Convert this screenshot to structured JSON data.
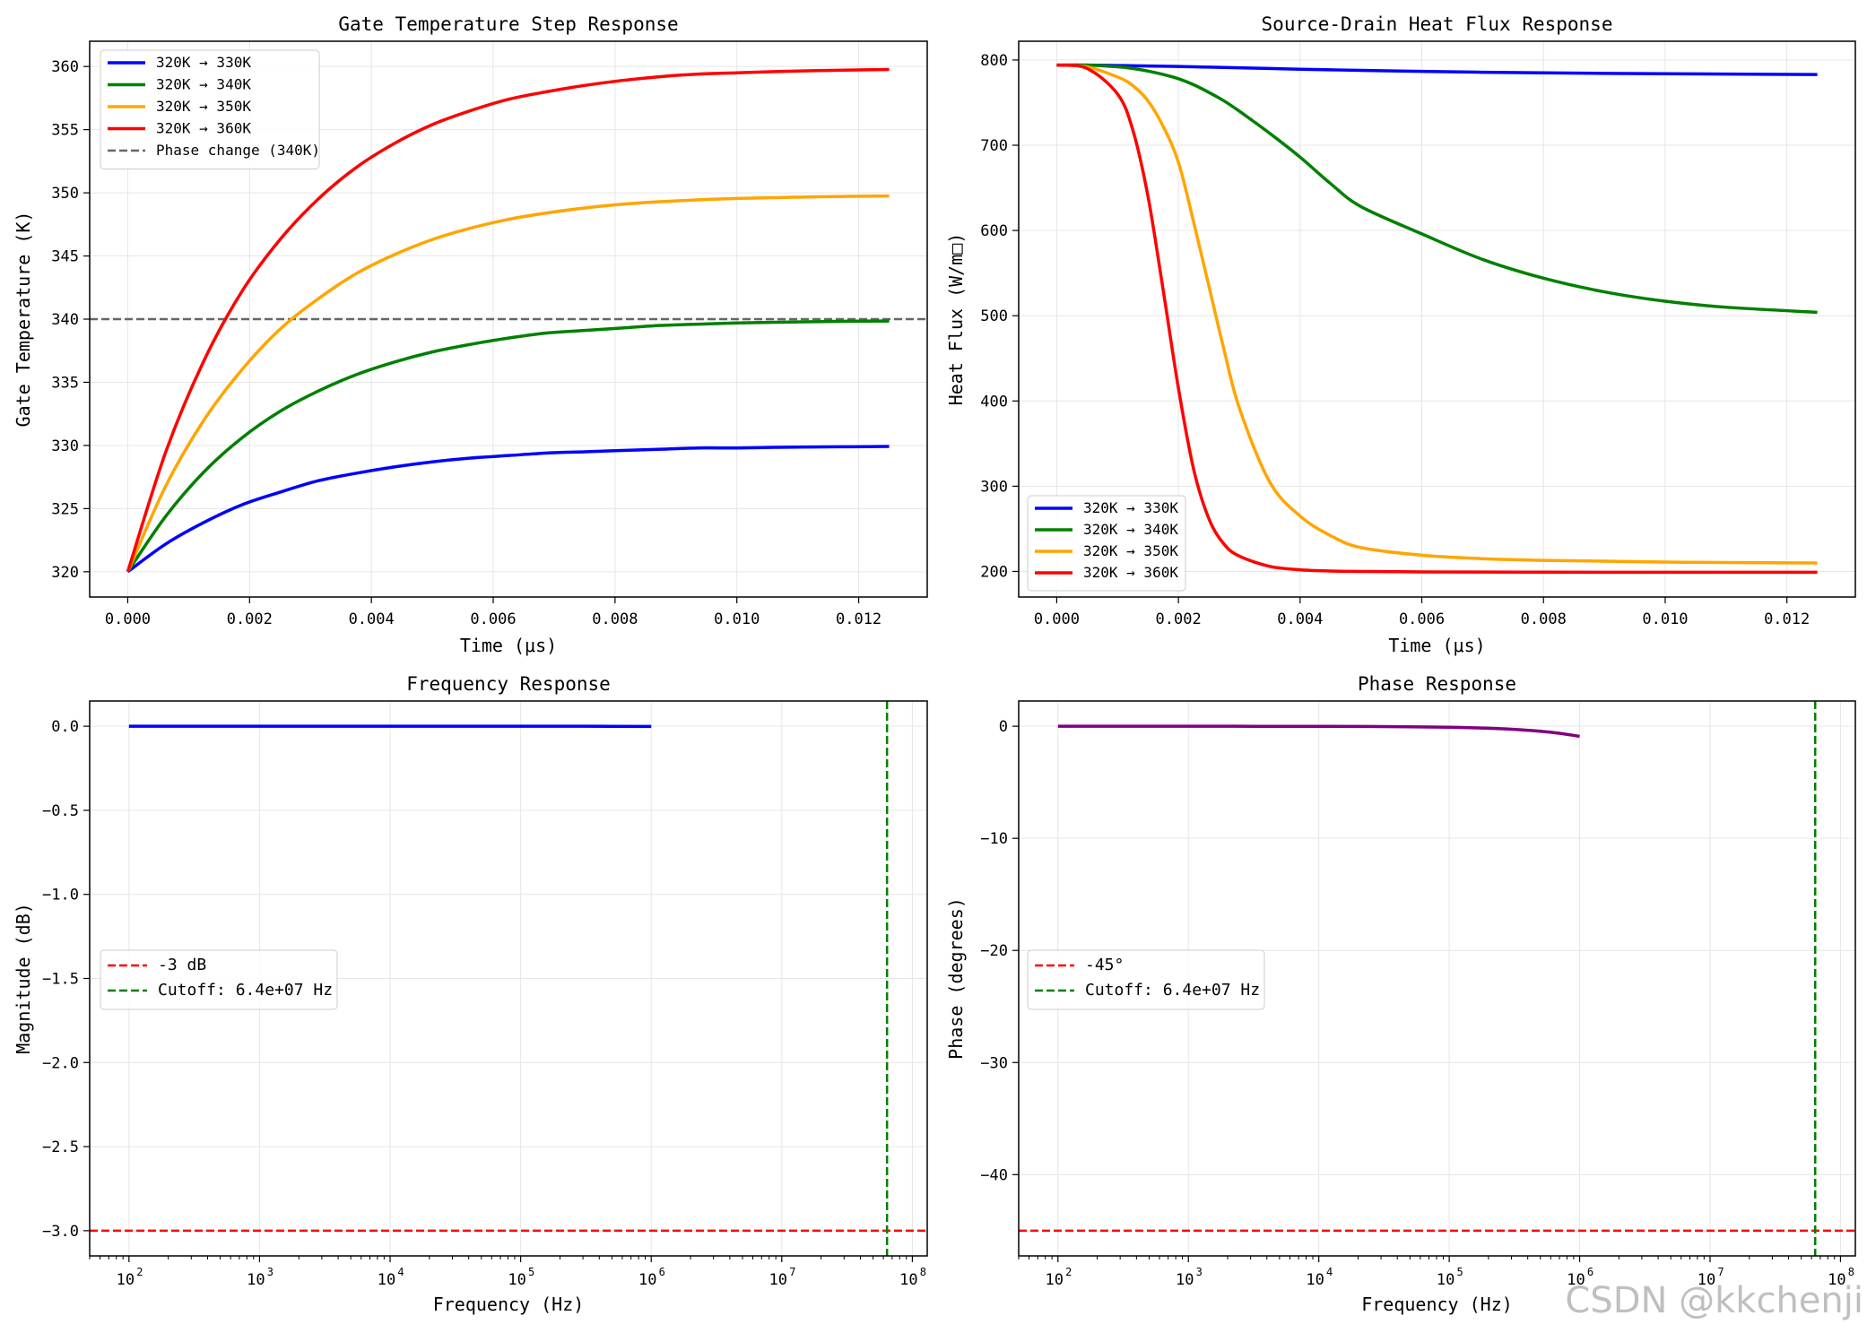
{
  "chart_data": [
    {
      "type": "line",
      "title": "Gate Temperature Step Response",
      "xlabel": "Time (μs)",
      "ylabel": "Gate Temperature (K)",
      "xscale": "linear",
      "xlim": [
        -0.000625,
        0.013125
      ],
      "ylim": [
        318,
        362
      ],
      "xticks": [
        0,
        0.002,
        0.004,
        0.006,
        0.008,
        0.01,
        0.012
      ],
      "xtick_labels": [
        "0.000",
        "0.002",
        "0.004",
        "0.006",
        "0.008",
        "0.010",
        "0.012"
      ],
      "yticks": [
        320,
        325,
        330,
        335,
        340,
        345,
        350,
        355,
        360
      ],
      "ytick_labels": [
        "320",
        "325",
        "330",
        "335",
        "340",
        "345",
        "350",
        "355",
        "360"
      ],
      "grid": true,
      "legend_position": "upper-left",
      "x": [
        0,
        0.000625,
        0.00125,
        0.001875,
        0.0025,
        0.003125,
        0.00375,
        0.004375,
        0.005,
        0.005625,
        0.00625,
        0.006875,
        0.0075,
        0.008125,
        0.00875,
        0.009375,
        0.01,
        0.010625,
        0.01125,
        0.011875,
        0.0125
      ],
      "series": [
        {
          "name": "320K → 330K",
          "color": "#0000ff",
          "values": [
            320,
            322.2,
            323.9,
            325.3,
            326.3,
            327.2,
            327.8,
            328.3,
            328.7,
            329.0,
            329.2,
            329.4,
            329.5,
            329.6,
            329.7,
            329.8,
            329.8,
            329.85,
            329.88,
            329.9,
            329.92
          ]
        },
        {
          "name": "320K → 340K",
          "color": "#008000",
          "values": [
            320,
            324.4,
            327.9,
            330.6,
            332.7,
            334.3,
            335.6,
            336.6,
            337.4,
            338.0,
            338.5,
            338.9,
            339.1,
            339.3,
            339.5,
            339.6,
            339.7,
            339.75,
            339.8,
            339.83,
            339.85
          ]
        },
        {
          "name": "320K → 350K",
          "color": "#ffa500",
          "values": [
            320,
            326.8,
            332.0,
            336.0,
            339.2,
            341.6,
            343.6,
            345.1,
            346.3,
            347.2,
            347.9,
            348.4,
            348.8,
            349.1,
            349.3,
            349.45,
            349.55,
            349.62,
            349.68,
            349.72,
            349.75
          ]
        },
        {
          "name": "320K → 360K",
          "color": "#ff0000",
          "values": [
            320,
            329.5,
            336.7,
            342.2,
            346.3,
            349.5,
            352.0,
            353.9,
            355.4,
            356.5,
            357.4,
            358.0,
            358.5,
            358.9,
            359.2,
            359.4,
            359.5,
            359.6,
            359.67,
            359.72,
            359.76
          ]
        }
      ],
      "reference_lines": [
        {
          "name": "Phase change (340K)",
          "orientation": "horizontal",
          "value": 340,
          "color": "#666666",
          "style": "dashed"
        }
      ]
    },
    {
      "type": "line",
      "title": "Source-Drain Heat Flux Response",
      "xlabel": "Time (μs)",
      "ylabel": "Heat Flux (W/m□)",
      "xscale": "linear",
      "xlim": [
        -0.000625,
        0.013125
      ],
      "ylim": [
        170,
        822
      ],
      "xticks": [
        0,
        0.002,
        0.004,
        0.006,
        0.008,
        0.01,
        0.012
      ],
      "xtick_labels": [
        "0.000",
        "0.002",
        "0.004",
        "0.006",
        "0.008",
        "0.010",
        "0.012"
      ],
      "yticks": [
        200,
        300,
        400,
        500,
        600,
        700,
        800
      ],
      "ytick_labels": [
        "200",
        "300",
        "400",
        "500",
        "600",
        "700",
        "800"
      ],
      "grid": true,
      "legend_position": "lower-left",
      "x": [
        0,
        0.0005,
        0.001,
        0.00125,
        0.0015,
        0.00175,
        0.002,
        0.00225,
        0.0025,
        0.00275,
        0.003,
        0.0035,
        0.004,
        0.0045,
        0.005,
        0.006,
        0.007,
        0.008,
        0.009,
        0.01,
        0.011,
        0.0125
      ],
      "series": [
        {
          "name": "320K → 330K",
          "color": "#0000ff",
          "values": [
            794,
            794,
            793.5,
            793.2,
            793,
            792.7,
            792.4,
            792,
            791.6,
            791.2,
            790.8,
            790,
            789.2,
            788.5,
            787.8,
            786.6,
            785.6,
            784.9,
            784.3,
            783.9,
            783.5,
            783
          ]
        },
        {
          "name": "320K → 340K",
          "color": "#008000",
          "values": [
            794,
            794,
            792,
            790,
            787,
            783,
            778,
            771,
            762,
            752,
            740,
            714,
            686,
            655,
            628,
            596,
            566,
            544,
            528,
            517,
            510,
            504
          ]
        },
        {
          "name": "320K → 350K",
          "color": "#ffa500",
          "values": [
            794,
            792,
            780,
            770,
            752,
            722,
            680,
            610,
            535,
            460,
            392,
            305,
            265,
            242,
            228,
            219,
            215,
            213,
            212,
            211,
            210.5,
            210
          ]
        },
        {
          "name": "320K → 360K",
          "color": "#ff0000",
          "values": [
            794,
            790,
            760,
            718,
            640,
            530,
            415,
            320,
            262,
            232,
            218,
            206,
            202,
            200.5,
            200,
            199.5,
            199.3,
            199.2,
            199.1,
            199,
            199,
            199
          ]
        }
      ]
    },
    {
      "type": "line",
      "title": "Frequency Response",
      "xlabel": "Frequency (Hz)",
      "ylabel": "Magnitude (dB)",
      "xscale": "log",
      "xlim": [
        50,
        130000000
      ],
      "ylim": [
        -3.15,
        0.15
      ],
      "xticks": [
        100,
        1000,
        10000,
        100000,
        1000000,
        10000000,
        100000000
      ],
      "xtick_bases": [
        "10",
        "10",
        "10",
        "10",
        "10",
        "10",
        "10"
      ],
      "xtick_exponents": [
        "2",
        "3",
        "4",
        "5",
        "6",
        "7",
        "8"
      ],
      "yticks": [
        0,
        -0.5,
        -1,
        -1.5,
        -2,
        -2.5,
        -3
      ],
      "ytick_labels": [
        "0.0",
        "−0.5",
        "−1.0",
        "−1.5",
        "−2.0",
        "−2.5",
        "−3.0"
      ],
      "grid": true,
      "legend_position": "center-left",
      "x": [
        100,
        1000,
        10000,
        100000,
        300000,
        1000000
      ],
      "series": [
        {
          "name": "",
          "color": "#0000ff",
          "values": [
            0,
            0,
            0,
            0,
            0,
            -0.001
          ]
        }
      ],
      "reference_lines": [
        {
          "name": "-3 dB",
          "orientation": "horizontal",
          "value": -3,
          "color": "#ff0000",
          "style": "dashed"
        },
        {
          "name": "Cutoff: 6.4e+07 Hz",
          "orientation": "vertical",
          "value": 64000000,
          "color": "#008000",
          "style": "dashed"
        }
      ]
    },
    {
      "type": "line",
      "title": "Phase Response",
      "xlabel": "Frequency (Hz)",
      "ylabel": "Phase (degrees)",
      "xscale": "log",
      "xlim": [
        50,
        130000000
      ],
      "ylim": [
        -47.25,
        2.25
      ],
      "xticks": [
        100,
        1000,
        10000,
        100000,
        1000000,
        10000000,
        100000000
      ],
      "xtick_bases": [
        "10",
        "10",
        "10",
        "10",
        "10",
        "10",
        "10"
      ],
      "xtick_exponents": [
        "2",
        "3",
        "4",
        "5",
        "6",
        "7",
        "8"
      ],
      "yticks": [
        0,
        -10,
        -20,
        -30,
        -40
      ],
      "ytick_labels": [
        "0",
        "−10",
        "−20",
        "−30",
        "−40"
      ],
      "grid": true,
      "legend_position": "center-left",
      "x": [
        100,
        1000,
        10000,
        30000,
        100000,
        200000,
        300000,
        500000,
        700000,
        1000000
      ],
      "series": [
        {
          "name": "",
          "color": "#800080",
          "values": [
            0,
            -0.001,
            -0.01,
            -0.03,
            -0.09,
            -0.18,
            -0.27,
            -0.45,
            -0.63,
            -0.9
          ]
        }
      ],
      "reference_lines": [
        {
          "name": "-45°",
          "orientation": "horizontal",
          "value": -45,
          "color": "#ff0000",
          "style": "dashed"
        },
        {
          "name": "Cutoff: 6.4e+07 Hz",
          "orientation": "vertical",
          "value": 64000000,
          "color": "#008000",
          "style": "dashed"
        }
      ]
    }
  ],
  "watermark": "CSDN @kkchenji"
}
